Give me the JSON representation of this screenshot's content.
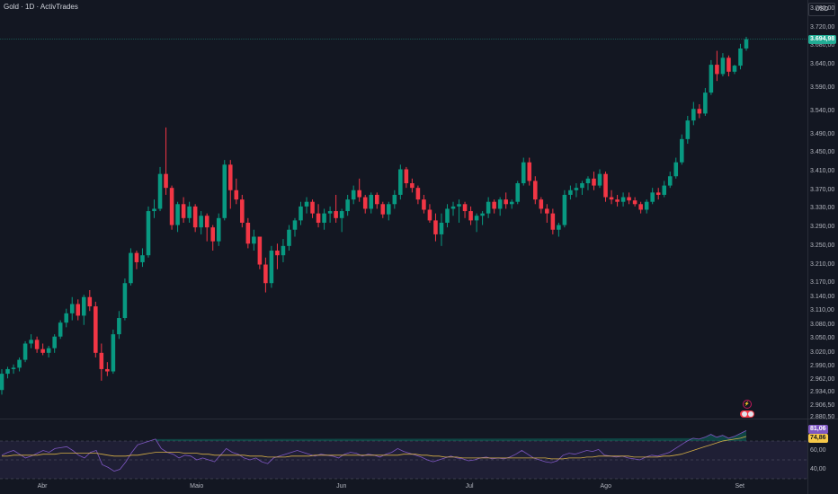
{
  "header": {
    "title": "Gold · 1D · ActivTrades",
    "currency": "USD"
  },
  "price_axis": {
    "ticks": [
      "3.760,00",
      "3.720,00",
      "3.680,00",
      "3.640,00",
      "3.590,00",
      "3.540,00",
      "3.490,00",
      "3.450,00",
      "3.410,00",
      "3.370,00",
      "3.330,00",
      "3.290,00",
      "3.250,00",
      "3.210,00",
      "3.170,00",
      "3.140,00",
      "3.110,00",
      "3.080,00",
      "3.050,00",
      "3.020,00",
      "2.990,00",
      "2.962,00",
      "2.934,00",
      "2.906,50",
      "2.880,50"
    ],
    "current_price_label": "3.694,98"
  },
  "time_axis": {
    "labels": [
      "Abr",
      "Maio",
      "Jun",
      "Jul",
      "Ago",
      "Set"
    ]
  },
  "rsi": {
    "ticks": [
      "60,00",
      "40,00"
    ],
    "value_label": "81,06",
    "ma_label": "74,86",
    "levels": [
      70,
      50,
      30
    ]
  },
  "colors": {
    "background": "#131722",
    "up": "#089981",
    "down": "#f23645",
    "rsi_line": "#7e57c2",
    "rsi_ma": "#f7c948",
    "rsi_band": "#7e57c2",
    "price_label_bg": "#22ab94"
  },
  "chart_data": [
    {
      "type": "candlestick",
      "title": "Gold · 1D · ActivTrades",
      "period": "1D",
      "ylim": [
        2880.5,
        3760
      ],
      "x_labels": [
        "Abr",
        "Maio",
        "Jun",
        "Jul",
        "Ago",
        "Set"
      ],
      "candles": [
        {
          "o": 2940,
          "h": 2985,
          "l": 2930,
          "c": 2975
        },
        {
          "o": 2975,
          "h": 2990,
          "l": 2965,
          "c": 2985
        },
        {
          "o": 2985,
          "h": 2995,
          "l": 2975,
          "c": 2988
        },
        {
          "o": 2988,
          "h": 3010,
          "l": 2980,
          "c": 3005
        },
        {
          "o": 3005,
          "h": 3045,
          "l": 3000,
          "c": 3040
        },
        {
          "o": 3040,
          "h": 3060,
          "l": 3030,
          "c": 3048
        },
        {
          "o": 3048,
          "h": 3055,
          "l": 3020,
          "c": 3028
        },
        {
          "o": 3028,
          "h": 3040,
          "l": 3015,
          "c": 3020
        },
        {
          "o": 3020,
          "h": 3035,
          "l": 3010,
          "c": 3030
        },
        {
          "o": 3030,
          "h": 3060,
          "l": 3020,
          "c": 3055
        },
        {
          "o": 3055,
          "h": 3090,
          "l": 3050,
          "c": 3085
        },
        {
          "o": 3085,
          "h": 3115,
          "l": 3075,
          "c": 3105
        },
        {
          "o": 3105,
          "h": 3140,
          "l": 3090,
          "c": 3125
        },
        {
          "o": 3125,
          "h": 3135,
          "l": 3090,
          "c": 3100
        },
        {
          "o": 3100,
          "h": 3145,
          "l": 3080,
          "c": 3140
        },
        {
          "o": 3140,
          "h": 3155,
          "l": 3110,
          "c": 3120
        },
        {
          "o": 3120,
          "h": 3130,
          "l": 3010,
          "c": 3020
        },
        {
          "o": 3020,
          "h": 3040,
          "l": 2960,
          "c": 2985
        },
        {
          "o": 2985,
          "h": 3000,
          "l": 2970,
          "c": 2980
        },
        {
          "o": 2980,
          "h": 3070,
          "l": 2975,
          "c": 3060
        },
        {
          "o": 3060,
          "h": 3110,
          "l": 3050,
          "c": 3095
        },
        {
          "o": 3095,
          "h": 3180,
          "l": 3090,
          "c": 3170
        },
        {
          "o": 3170,
          "h": 3245,
          "l": 3165,
          "c": 3235
        },
        {
          "o": 3235,
          "h": 3240,
          "l": 3200,
          "c": 3215
        },
        {
          "o": 3215,
          "h": 3245,
          "l": 3205,
          "c": 3230
        },
        {
          "o": 3230,
          "h": 3335,
          "l": 3225,
          "c": 3325
        },
        {
          "o": 3325,
          "h": 3350,
          "l": 3310,
          "c": 3330
        },
        {
          "o": 3330,
          "h": 3420,
          "l": 3325,
          "c": 3405
        },
        {
          "o": 3405,
          "h": 3505,
          "l": 3360,
          "c": 3375
        },
        {
          "o": 3375,
          "h": 3380,
          "l": 3285,
          "c": 3295
        },
        {
          "o": 3295,
          "h": 3345,
          "l": 3280,
          "c": 3340
        },
        {
          "o": 3340,
          "h": 3355,
          "l": 3300,
          "c": 3310
        },
        {
          "o": 3310,
          "h": 3345,
          "l": 3300,
          "c": 3335
        },
        {
          "o": 3335,
          "h": 3340,
          "l": 3280,
          "c": 3290
        },
        {
          "o": 3290,
          "h": 3325,
          "l": 3275,
          "c": 3315
        },
        {
          "o": 3315,
          "h": 3320,
          "l": 3260,
          "c": 3290
        },
        {
          "o": 3290,
          "h": 3295,
          "l": 3240,
          "c": 3260
        },
        {
          "o": 3260,
          "h": 3320,
          "l": 3250,
          "c": 3310
        },
        {
          "o": 3310,
          "h": 3435,
          "l": 3305,
          "c": 3425
        },
        {
          "o": 3425,
          "h": 3435,
          "l": 3330,
          "c": 3370
        },
        {
          "o": 3370,
          "h": 3395,
          "l": 3340,
          "c": 3350
        },
        {
          "o": 3350,
          "h": 3360,
          "l": 3290,
          "c": 3300
        },
        {
          "o": 3300,
          "h": 3310,
          "l": 3245,
          "c": 3255
        },
        {
          "o": 3255,
          "h": 3285,
          "l": 3240,
          "c": 3270
        },
        {
          "o": 3270,
          "h": 3270,
          "l": 3200,
          "c": 3210
        },
        {
          "o": 3210,
          "h": 3225,
          "l": 3150,
          "c": 3170
        },
        {
          "o": 3170,
          "h": 3250,
          "l": 3160,
          "c": 3240
        },
        {
          "o": 3240,
          "h": 3255,
          "l": 3200,
          "c": 3230
        },
        {
          "o": 3230,
          "h": 3265,
          "l": 3215,
          "c": 3250
        },
        {
          "o": 3250,
          "h": 3295,
          "l": 3240,
          "c": 3285
        },
        {
          "o": 3285,
          "h": 3310,
          "l": 3270,
          "c": 3305
        },
        {
          "o": 3305,
          "h": 3345,
          "l": 3295,
          "c": 3335
        },
        {
          "o": 3335,
          "h": 3355,
          "l": 3320,
          "c": 3345
        },
        {
          "o": 3345,
          "h": 3350,
          "l": 3310,
          "c": 3320
        },
        {
          "o": 3320,
          "h": 3340,
          "l": 3290,
          "c": 3300
        },
        {
          "o": 3300,
          "h": 3330,
          "l": 3285,
          "c": 3320
        },
        {
          "o": 3320,
          "h": 3335,
          "l": 3300,
          "c": 3325
        },
        {
          "o": 3325,
          "h": 3360,
          "l": 3300,
          "c": 3310
        },
        {
          "o": 3310,
          "h": 3330,
          "l": 3280,
          "c": 3325
        },
        {
          "o": 3325,
          "h": 3360,
          "l": 3315,
          "c": 3350
        },
        {
          "o": 3350,
          "h": 3380,
          "l": 3340,
          "c": 3370
        },
        {
          "o": 3370,
          "h": 3395,
          "l": 3345,
          "c": 3355
        },
        {
          "o": 3355,
          "h": 3360,
          "l": 3320,
          "c": 3330
        },
        {
          "o": 3330,
          "h": 3365,
          "l": 3320,
          "c": 3360
        },
        {
          "o": 3360,
          "h": 3365,
          "l": 3330,
          "c": 3340
        },
        {
          "o": 3340,
          "h": 3345,
          "l": 3310,
          "c": 3318
        },
        {
          "o": 3318,
          "h": 3345,
          "l": 3305,
          "c": 3340
        },
        {
          "o": 3340,
          "h": 3370,
          "l": 3330,
          "c": 3360
        },
        {
          "o": 3360,
          "h": 3425,
          "l": 3350,
          "c": 3415
        },
        {
          "o": 3415,
          "h": 3420,
          "l": 3375,
          "c": 3385
        },
        {
          "o": 3385,
          "h": 3395,
          "l": 3365,
          "c": 3375
        },
        {
          "o": 3375,
          "h": 3380,
          "l": 3340,
          "c": 3350
        },
        {
          "o": 3350,
          "h": 3360,
          "l": 3320,
          "c": 3328
        },
        {
          "o": 3328,
          "h": 3340,
          "l": 3300,
          "c": 3305
        },
        {
          "o": 3305,
          "h": 3320,
          "l": 3260,
          "c": 3275
        },
        {
          "o": 3275,
          "h": 3320,
          "l": 3250,
          "c": 3300
        },
        {
          "o": 3300,
          "h": 3340,
          "l": 3290,
          "c": 3330
        },
        {
          "o": 3330,
          "h": 3345,
          "l": 3315,
          "c": 3335
        },
        {
          "o": 3335,
          "h": 3350,
          "l": 3300,
          "c": 3340
        },
        {
          "o": 3340,
          "h": 3345,
          "l": 3310,
          "c": 3325
        },
        {
          "o": 3325,
          "h": 3335,
          "l": 3295,
          "c": 3305
        },
        {
          "o": 3305,
          "h": 3320,
          "l": 3280,
          "c": 3315
        },
        {
          "o": 3315,
          "h": 3325,
          "l": 3295,
          "c": 3320
        },
        {
          "o": 3320,
          "h": 3355,
          "l": 3310,
          "c": 3345
        },
        {
          "o": 3345,
          "h": 3350,
          "l": 3320,
          "c": 3330
        },
        {
          "o": 3330,
          "h": 3355,
          "l": 3315,
          "c": 3350
        },
        {
          "o": 3350,
          "h": 3365,
          "l": 3330,
          "c": 3340
        },
        {
          "o": 3340,
          "h": 3350,
          "l": 3330,
          "c": 3345
        },
        {
          "o": 3345,
          "h": 3390,
          "l": 3340,
          "c": 3385
        },
        {
          "o": 3385,
          "h": 3440,
          "l": 3380,
          "c": 3430
        },
        {
          "o": 3430,
          "h": 3440,
          "l": 3380,
          "c": 3390
        },
        {
          "o": 3390,
          "h": 3400,
          "l": 3340,
          "c": 3350
        },
        {
          "o": 3350,
          "h": 3355,
          "l": 3320,
          "c": 3330
        },
        {
          "o": 3330,
          "h": 3340,
          "l": 3300,
          "c": 3320
        },
        {
          "o": 3320,
          "h": 3330,
          "l": 3275,
          "c": 3285
        },
        {
          "o": 3285,
          "h": 3300,
          "l": 3270,
          "c": 3295
        },
        {
          "o": 3295,
          "h": 3370,
          "l": 3290,
          "c": 3360
        },
        {
          "o": 3360,
          "h": 3380,
          "l": 3350,
          "c": 3370
        },
        {
          "o": 3370,
          "h": 3385,
          "l": 3355,
          "c": 3375
        },
        {
          "o": 3375,
          "h": 3390,
          "l": 3360,
          "c": 3385
        },
        {
          "o": 3385,
          "h": 3400,
          "l": 3370,
          "c": 3395
        },
        {
          "o": 3395,
          "h": 3410,
          "l": 3370,
          "c": 3380
        },
        {
          "o": 3380,
          "h": 3415,
          "l": 3375,
          "c": 3405
        },
        {
          "o": 3405,
          "h": 3410,
          "l": 3345,
          "c": 3355
        },
        {
          "o": 3355,
          "h": 3370,
          "l": 3340,
          "c": 3350
        },
        {
          "o": 3350,
          "h": 3360,
          "l": 3335,
          "c": 3345
        },
        {
          "o": 3345,
          "h": 3365,
          "l": 3335,
          "c": 3355
        },
        {
          "o": 3355,
          "h": 3365,
          "l": 3340,
          "c": 3348
        },
        {
          "o": 3348,
          "h": 3355,
          "l": 3335,
          "c": 3340
        },
        {
          "o": 3340,
          "h": 3345,
          "l": 3320,
          "c": 3328
        },
        {
          "o": 3328,
          "h": 3350,
          "l": 3320,
          "c": 3345
        },
        {
          "o": 3345,
          "h": 3375,
          "l": 3340,
          "c": 3365
        },
        {
          "o": 3365,
          "h": 3375,
          "l": 3350,
          "c": 3360
        },
        {
          "o": 3360,
          "h": 3390,
          "l": 3355,
          "c": 3380
        },
        {
          "o": 3380,
          "h": 3410,
          "l": 3375,
          "c": 3400
        },
        {
          "o": 3400,
          "h": 3440,
          "l": 3395,
          "c": 3430
        },
        {
          "o": 3430,
          "h": 3490,
          "l": 3425,
          "c": 3480
        },
        {
          "o": 3480,
          "h": 3530,
          "l": 3470,
          "c": 3520
        },
        {
          "o": 3520,
          "h": 3560,
          "l": 3510,
          "c": 3545
        },
        {
          "o": 3545,
          "h": 3555,
          "l": 3525,
          "c": 3535
        },
        {
          "o": 3535,
          "h": 3590,
          "l": 3530,
          "c": 3580
        },
        {
          "o": 3580,
          "h": 3650,
          "l": 3575,
          "c": 3640
        },
        {
          "o": 3640,
          "h": 3670,
          "l": 3605,
          "c": 3620
        },
        {
          "o": 3620,
          "h": 3665,
          "l": 3615,
          "c": 3655
        },
        {
          "o": 3655,
          "h": 3660,
          "l": 3615,
          "c": 3625
        },
        {
          "o": 3625,
          "h": 3640,
          "l": 3620,
          "c": 3638
        },
        {
          "o": 3638,
          "h": 3685,
          "l": 3630,
          "c": 3675
        },
        {
          "o": 3675,
          "h": 3700,
          "l": 3670,
          "c": 3694.98
        }
      ]
    },
    {
      "type": "line",
      "title": "",
      "ylim": [
        30,
        90
      ],
      "y_ticks": [
        60,
        40
      ],
      "series": [
        {
          "values": [
            55,
            58,
            60,
            56,
            52,
            54,
            57,
            60,
            58,
            62,
            63,
            64,
            60,
            55,
            52,
            58,
            60,
            45,
            42,
            38,
            40,
            48,
            58,
            66,
            68,
            70,
            72,
            62,
            58,
            56,
            52,
            55,
            54,
            50,
            52,
            50,
            48,
            55,
            62,
            58,
            56,
            52,
            50,
            52,
            48,
            46,
            52,
            54,
            56,
            58,
            60,
            58,
            56,
            54,
            56,
            55,
            54,
            52,
            56,
            58,
            57,
            54,
            56,
            55,
            53,
            56,
            58,
            62,
            59,
            57,
            55,
            53,
            50,
            48,
            50,
            52,
            54,
            52,
            51,
            49,
            50,
            52,
            53,
            51,
            52,
            51,
            53,
            56,
            60,
            56,
            52,
            50,
            48,
            47,
            49,
            55,
            57,
            56,
            58,
            60,
            59,
            61,
            55,
            54,
            53,
            54,
            52,
            51,
            50,
            53,
            55,
            54,
            56,
            58,
            62,
            66,
            70,
            73,
            72,
            74,
            77,
            74,
            76,
            73,
            75,
            78,
            81.06
          ]
        },
        {
          "values": [
            54,
            54,
            55,
            55,
            55,
            55,
            55,
            56,
            56,
            56,
            57,
            57,
            57,
            57,
            57,
            57,
            57,
            56,
            55,
            54,
            54,
            54,
            55,
            55,
            56,
            57,
            58,
            58,
            58,
            58,
            58,
            57,
            57,
            57,
            56,
            56,
            55,
            55,
            55,
            55,
            55,
            55,
            54,
            54,
            54,
            53,
            53,
            53,
            53,
            54,
            54,
            54,
            54,
            55,
            55,
            55,
            55,
            55,
            55,
            55,
            55,
            55,
            55,
            55,
            55,
            55,
            55,
            55,
            56,
            56,
            56,
            55,
            55,
            54,
            54,
            53,
            53,
            53,
            52,
            52,
            52,
            52,
            52,
            52,
            52,
            52,
            52,
            52,
            52,
            52,
            52,
            52,
            52,
            51,
            51,
            51,
            52,
            52,
            52,
            53,
            53,
            54,
            54,
            54,
            54,
            54,
            54,
            53,
            53,
            53,
            53,
            53,
            54,
            54,
            55,
            56,
            58,
            60,
            62,
            64,
            66,
            68,
            70,
            71,
            72,
            73,
            74.86
          ]
        }
      ]
    }
  ]
}
